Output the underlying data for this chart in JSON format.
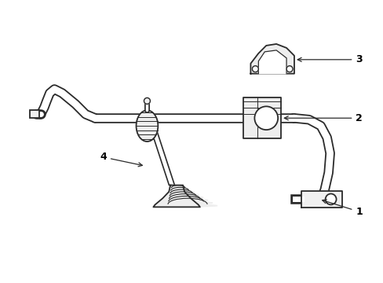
{
  "background_color": "#ffffff",
  "line_color": "#2a2a2a",
  "line_width": 1.3,
  "label_fontsize": 9,
  "fig_width": 4.89,
  "fig_height": 3.6,
  "dpi": 100
}
